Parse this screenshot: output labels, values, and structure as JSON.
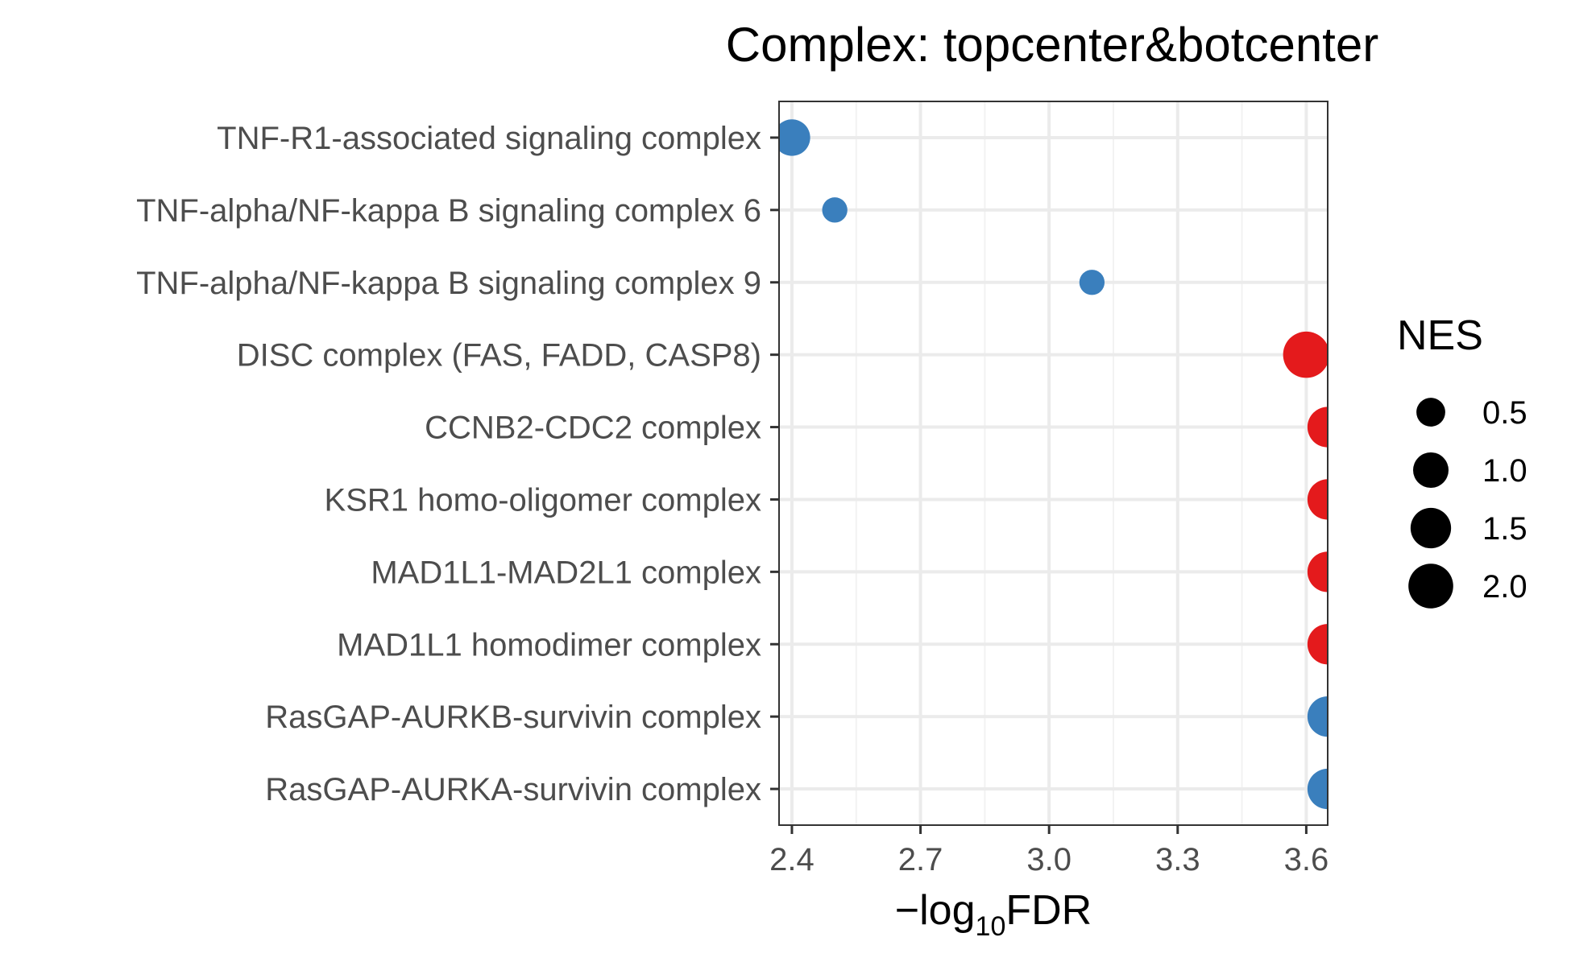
{
  "chart_data": {
    "type": "scatter",
    "title": "Complex: topcenter&botcenter",
    "xlabel": {
      "prefix": "−log",
      "subscript": "10",
      "suffix": "FDR"
    },
    "ylabel": "",
    "xlim": [
      2.37,
      3.65
    ],
    "x_ticks": [
      2.4,
      2.7,
      3.0,
      3.3,
      3.6
    ],
    "x_tick_labels": [
      "2.4",
      "2.7",
      "3.0",
      "3.3",
      "3.6"
    ],
    "grid": true,
    "categories": [
      "TNF-R1-associated signaling complex",
      "TNF-alpha/NF-kappa B signaling complex 6",
      "TNF-alpha/NF-kappa B signaling complex 9",
      "DISC complex (FAS, FADD, CASP8)",
      "CCNB2-CDC2 complex",
      "KSR1 homo-oligomer complex",
      "MAD1L1-MAD2L1 complex",
      "MAD1L1 homodimer complex",
      "RasGAP-AURKB-survivin complex",
      "RasGAP-AURKA-survivin complex"
    ],
    "points": [
      {
        "category": "TNF-R1-associated signaling complex",
        "x": 2.4,
        "nes": 1.1,
        "color": "#3a7fbd"
      },
      {
        "category": "TNF-alpha/NF-kappa B signaling complex 6",
        "x": 2.5,
        "nes": 0.3,
        "color": "#3a7fbd"
      },
      {
        "category": "TNF-alpha/NF-kappa B signaling complex 9",
        "x": 3.1,
        "nes": 0.3,
        "color": "#3a7fbd"
      },
      {
        "category": "DISC complex (FAS, FADD, CASP8)",
        "x": 3.6,
        "nes": 2.2,
        "color": "#e41a1c"
      },
      {
        "category": "CCNB2-CDC2 complex",
        "x": 3.65,
        "nes": 1.5,
        "color": "#e41a1c"
      },
      {
        "category": "KSR1 homo-oligomer complex",
        "x": 3.65,
        "nes": 1.5,
        "color": "#e41a1c"
      },
      {
        "category": "MAD1L1-MAD2L1 complex",
        "x": 3.65,
        "nes": 1.5,
        "color": "#e41a1c"
      },
      {
        "category": "MAD1L1 homodimer complex",
        "x": 3.65,
        "nes": 1.5,
        "color": "#e41a1c"
      },
      {
        "category": "RasGAP-AURKB-survivin complex",
        "x": 3.65,
        "nes": 1.5,
        "color": "#3a7fbd"
      },
      {
        "category": "RasGAP-AURKA-survivin complex",
        "x": 3.65,
        "nes": 1.5,
        "color": "#3a7fbd"
      }
    ],
    "size_legend": {
      "title": "NES",
      "placement": "right",
      "values": [
        0.5,
        1.0,
        1.5,
        2.0
      ],
      "labels": [
        "0.5",
        "1.0",
        "1.5",
        "2.0"
      ],
      "color": "#000000"
    }
  }
}
